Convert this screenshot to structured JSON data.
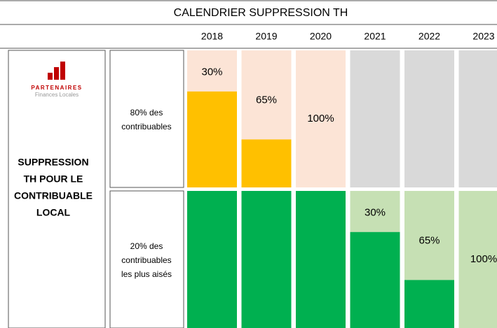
{
  "title": "CALENDRIER SUPPRESSION TH",
  "years": [
    "2018",
    "2019",
    "2020",
    "2021",
    "2022",
    "2023"
  ],
  "logo": {
    "name": "PARTENAIRES",
    "subtitle": "Finances Locales"
  },
  "heading": [
    "SUPPRESSION",
    "TH POUR LE",
    "CONTRIBUABLE",
    "LOCAL"
  ],
  "colors": {
    "done": "#d9d9d9"
  },
  "rows": [
    {
      "label": [
        "80% des",
        "contribuables"
      ],
      "remaining_color": "#ffc000",
      "removed_color": "#fce4d6",
      "cells": [
        {
          "value": 30,
          "label": "30%"
        },
        {
          "value": 65,
          "label": "65%"
        },
        {
          "value": 100,
          "label": "100%"
        },
        {
          "state": "done"
        },
        {
          "state": "done"
        },
        {
          "state": "done"
        }
      ]
    },
    {
      "label": [
        "20% des",
        "contribuables",
        "les plus aisés"
      ],
      "remaining_color": "#00b050",
      "removed_color": "#c6e0b4",
      "cells": [
        {
          "state": "full"
        },
        {
          "state": "full"
        },
        {
          "state": "full"
        },
        {
          "value": 30,
          "label": "30%"
        },
        {
          "value": 65,
          "label": "65%"
        },
        {
          "value": 100,
          "label": "100%"
        }
      ]
    }
  ]
}
